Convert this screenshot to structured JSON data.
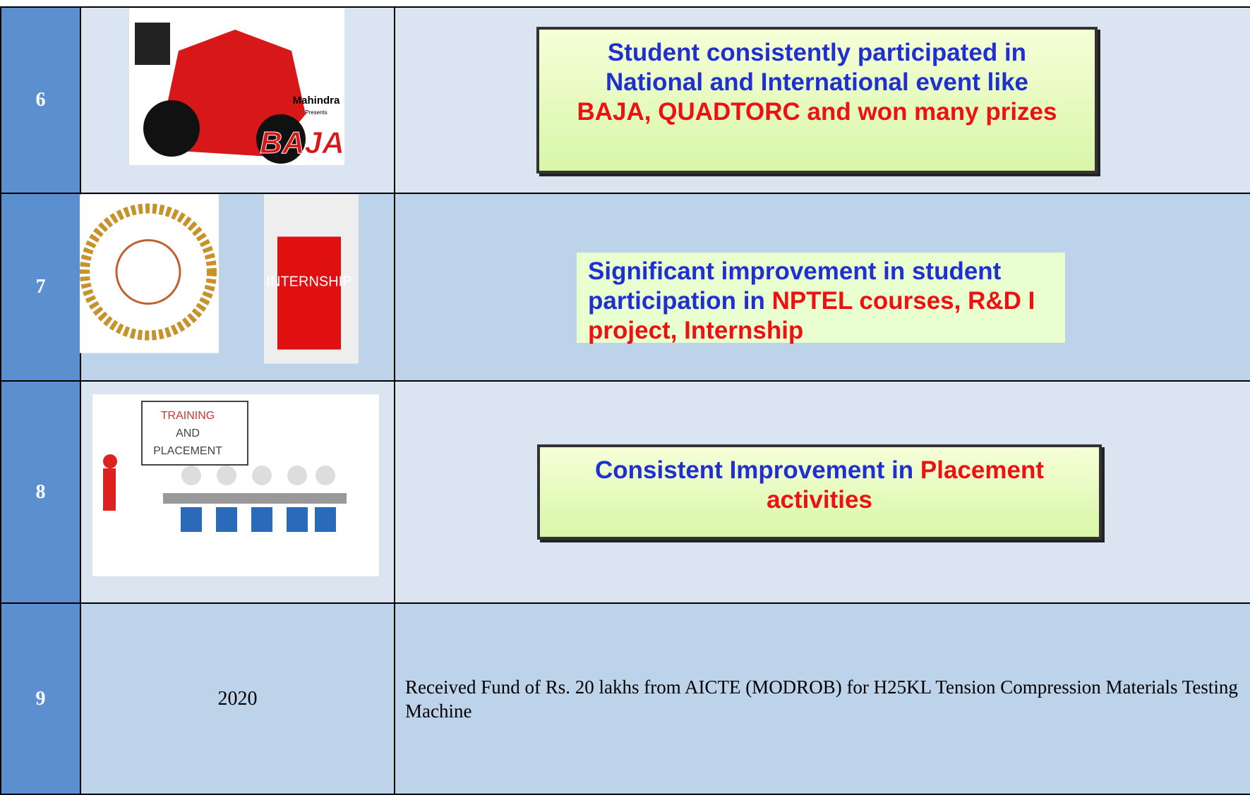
{
  "rows": [
    {
      "number": "6",
      "image_texts": [
        "Mahindra",
        "Presents",
        "BAJA"
      ],
      "description": [
        {
          "text": "Student consistently participated in National and International event like",
          "color": "#1f2fd0"
        },
        {
          "text": "BAJA, QUADTORC and won many prizes",
          "color": "#ee1111"
        }
      ]
    },
    {
      "number": "7",
      "image_texts": [
        "INTERNSHIP"
      ],
      "description": [
        {
          "text": "Significant improvement in student participation in",
          "color": "#1f2fd0"
        },
        {
          "text": "NPTEL courses, R&D I project, Internship",
          "color": "#ee1111"
        }
      ]
    },
    {
      "number": "8",
      "image_texts": [
        "TRAINING",
        "AND",
        "PLACEMENT"
      ],
      "description": [
        {
          "text": "Consistent Improvement in",
          "color": "#1f2fd0"
        },
        {
          "text": "Placement activities",
          "color": "#ee1111"
        }
      ]
    },
    {
      "number": "9",
      "year": "2020",
      "description": [
        {
          "text": "Received Fund of Rs. 20 lakhs from AICTE (MODROB) for H25KL Tension Compression Materials Testing Machine"
        }
      ]
    }
  ]
}
